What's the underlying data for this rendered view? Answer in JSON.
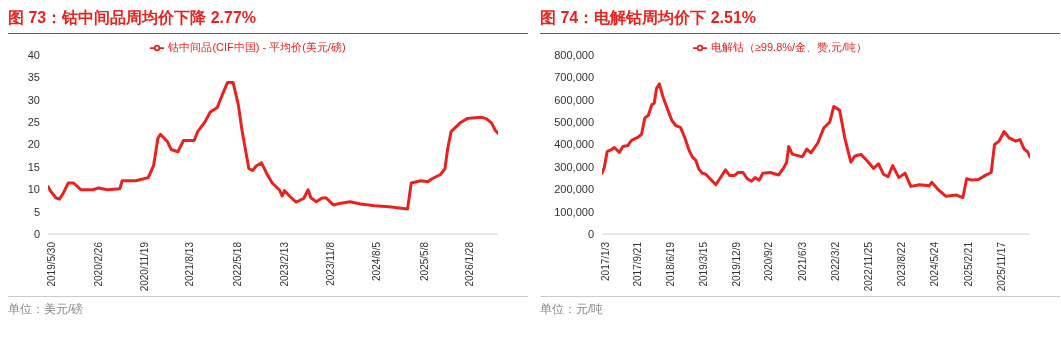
{
  "chart_data": [
    {
      "type": "line",
      "title": "图 73：钴中间品周均价下降 2.77%",
      "annotations": [
        "单位：美元/磅"
      ],
      "legend": "top",
      "x": [
        "2019-05-30",
        "2019-06-14",
        "2019-07-15",
        "2019-08-04",
        "2019-08-24",
        "2019-09-25",
        "2019-10-26",
        "2019-12-07",
        "2020-02-17",
        "2020-03-19",
        "2020-05-10",
        "2020-07-21",
        "2020-08-04",
        "2020-10-23",
        "2021-01-03",
        "2021-02-03",
        "2021-02-18",
        "2021-02-28",
        "2021-03-15",
        "2021-04-24",
        "2021-05-16",
        "2021-06-25",
        "2021-07-27",
        "2021-09-27",
        "2021-10-18",
        "2021-11-28",
        "2021-12-29",
        "2022-02-09",
        "2022-03-11",
        "2022-04-10",
        "2022-05-12",
        "2022-06-11",
        "2022-07-03",
        "2022-07-23",
        "2022-08-12",
        "2022-09-03",
        "2022-09-23",
        "2022-10-25",
        "2022-11-24",
        "2022-12-26",
        "2023-02-05",
        "2023-02-22",
        "2023-03-07",
        "2023-04-06",
        "2023-05-14",
        "2023-06-28",
        "2023-07-23",
        "2023-08-08",
        "2023-09-09",
        "2023-10-10",
        "2023-11-04",
        "2023-12-17",
        "2024-01-21",
        "2024-03-23",
        "2024-05-24",
        "2024-08-14",
        "2024-11-06",
        "2025-02-21",
        "2025-03-15",
        "2025-05-10",
        "2025-06-19",
        "2025-07-11",
        "2025-09-01",
        "2025-09-27",
        "2025-10-12",
        "2025-11-02",
        "2025-12-23",
        "2026-02-03",
        "2026-04-24",
        "2026-05-26",
        "2026-06-26",
        "2026-07-17",
        "2026-08-02"
      ],
      "series": [
        {
          "name": "钴中间品(CIF中国) - 平均价(美元/磅)",
          "color": "#e8231f",
          "values": [
            10.6,
            9.6,
            8.1,
            7.8,
            8.9,
            11.4,
            11.4,
            9.9,
            9.9,
            10.3,
            9.9,
            10.1,
            11.9,
            11.9,
            12.6,
            15.3,
            18.9,
            21.4,
            22.3,
            20.7,
            18.9,
            18.4,
            20.9,
            20.9,
            22.9,
            25,
            27.2,
            28.3,
            31.2,
            33.9,
            33.9,
            29,
            23.2,
            18.9,
            14.6,
            14.2,
            15.2,
            15.9,
            13.5,
            11.4,
            9.9,
            8.5,
            9.7,
            8.5,
            7.1,
            8.0,
            9.9,
            8.1,
            7.2,
            8.0,
            8.1,
            6.5,
            6.8,
            7.2,
            6.7,
            6.3,
            6.1,
            5.6,
            11.4,
            11.9,
            11.7,
            12.3,
            13.3,
            14.6,
            18.9,
            22.9,
            24.8,
            25.8,
            26.1,
            25.8,
            24.8,
            23.2,
            22.5
          ]
        }
      ],
      "xlim": [
        "2019-05-30",
        "2026-08-02"
      ],
      "xticks": [
        {
          "value": "2019-05-30",
          "label": "2019/5/30"
        },
        {
          "value": "2020-02-26",
          "label": "2020/2/26"
        },
        {
          "value": "2020-11-19",
          "label": "2020/11/19"
        },
        {
          "value": "2021-08-13",
          "label": "2021/8/13"
        },
        {
          "value": "2022-05-18",
          "label": "2022/5/18"
        },
        {
          "value": "2023-02-13",
          "label": "2023/2/13"
        },
        {
          "value": "2023-11-08",
          "label": "2023/11/8"
        },
        {
          "value": "2024-08-05",
          "label": "2024/8/5"
        },
        {
          "value": "2025-05-08",
          "label": "2025/5/8"
        },
        {
          "value": "2026-01-28",
          "label": "2026/1/28"
        }
      ],
      "ylim": [
        0,
        40
      ],
      "yticks": [
        0,
        5,
        10,
        15,
        20,
        25,
        30,
        35,
        40
      ]
    },
    {
      "type": "line",
      "title": "图 74：电解钴周均价下 2.51%",
      "annotations": [
        "单位：元/吨"
      ],
      "legend": "top",
      "x": [
        "2017-01-03",
        "2017-01-22",
        "2017-02-14",
        "2017-03-17",
        "2017-04-14",
        "2017-05-25",
        "2017-06-23",
        "2017-08-04",
        "2017-08-31",
        "2017-10-26",
        "2017-11-23",
        "2017-12-20",
        "2018-01-18",
        "2018-02-15",
        "2018-03-07",
        "2018-03-26",
        "2018-04-18",
        "2018-05-16",
        "2018-06-27",
        "2018-07-29",
        "2018-09-01",
        "2018-10-08",
        "2018-11-13",
        "2018-12-16",
        "2019-01-13",
        "2019-02-11",
        "2019-03-08",
        "2019-04-05",
        "2019-05-03",
        "2019-06-14",
        "2019-07-25",
        "2019-08-22",
        "2019-10-12",
        "2019-11-14",
        "2019-12-26",
        "2020-01-23",
        "2020-03-04",
        "2020-04-07",
        "2020-05-12",
        "2020-06-10",
        "2020-07-15",
        "2020-08-13",
        "2020-10-13",
        "2020-12-21",
        "2021-02-02",
        "2021-02-24",
        "2021-03-13",
        "2021-04-11",
        "2021-07-03",
        "2021-08-08",
        "2021-09-11",
        "2021-11-06",
        "2021-12-25",
        "2022-02-12",
        "2022-03-17",
        "2022-05-04",
        "2022-06-15",
        "2022-08-04",
        "2022-09-07",
        "2022-10-26",
        "2022-12-13",
        "2023-02-07",
        "2023-03-18",
        "2023-04-29",
        "2023-06-05",
        "2023-07-13",
        "2023-09-01",
        "2023-10-22",
        "2023-12-08",
        "2024-02-17",
        "2024-05-09",
        "2024-05-28",
        "2024-07-17",
        "2024-09-20",
        "2024-12-17",
        "2025-02-07",
        "2025-03-10",
        "2025-04-21",
        "2025-06-15",
        "2025-08-10",
        "2025-09-27",
        "2025-10-24",
        "2025-11-30",
        "2026-01-11",
        "2026-02-21",
        "2026-04-16",
        "2026-05-21",
        "2026-06-24",
        "2026-07-21",
        "2026-08-11"
      ],
      "series": [
        {
          "name": "电解钴（≥99.8%/金、赞,元/吨）",
          "color": "#e8231f",
          "values": [
            272000,
            298000,
            368000,
            376000,
            387000,
            365000,
            391000,
            396000,
            418000,
            433000,
            446000,
            519000,
            531000,
            578000,
            585000,
            651000,
            671000,
            616000,
            554000,
            508000,
            484000,
            477000,
            430000,
            376000,
            345000,
            329000,
            290000,
            272000,
            267000,
            244000,
            220000,
            244000,
            287000,
            262000,
            262000,
            275000,
            275000,
            247000,
            236000,
            252000,
            241000,
            272000,
            275000,
            264000,
            298000,
            321000,
            391000,
            357000,
            345000,
            380000,
            363000,
            407000,
            474000,
            500000,
            570000,
            554000,
            430000,
            321000,
            349000,
            356000,
            329000,
            293000,
            314000,
            267000,
            256000,
            306000,
            252000,
            272000,
            213000,
            220000,
            216000,
            231000,
            200000,
            169000,
            174000,
            163000,
            247000,
            241000,
            244000,
            262000,
            275000,
            399000,
            415000,
            458000,
            430000,
            415000,
            422000,
            380000,
            368000,
            345000
          ]
        }
      ],
      "xlim": [
        "2017-01-03",
        "2026-08-11"
      ],
      "xticks": [
        {
          "value": "2017-01-03",
          "label": "2017/1/3"
        },
        {
          "value": "2017-09-21",
          "label": "2017/9/21"
        },
        {
          "value": "2018-06-19",
          "label": "2018/6/19"
        },
        {
          "value": "2019-03-15",
          "label": "2019/3/15"
        },
        {
          "value": "2019-12-09",
          "label": "2019/12/9"
        },
        {
          "value": "2020-09-02",
          "label": "2020/9/2"
        },
        {
          "value": "2021-06-03",
          "label": "2021/6/3"
        },
        {
          "value": "2022-03-02",
          "label": "2022/3/2"
        },
        {
          "value": "2022-11-25",
          "label": "2022/11/25"
        },
        {
          "value": "2023-08-22",
          "label": "2023/8/22"
        },
        {
          "value": "2024-05-24",
          "label": "2024/5/24"
        },
        {
          "value": "2025-02-21",
          "label": "2025/2/21"
        },
        {
          "value": "2025-11-17",
          "label": "2025/11/17"
        }
      ],
      "ylim": [
        0,
        800000
      ],
      "yticks": [
        0,
        {
          "value": 100000,
          "label": "100,000"
        },
        {
          "value": 200000,
          "label": "200,000"
        },
        {
          "value": 300000,
          "label": "300,000"
        },
        {
          "value": 400000,
          "label": "400,000"
        },
        {
          "value": 500000,
          "label": "500,000"
        },
        {
          "value": 600000,
          "label": "600,000"
        },
        {
          "value": 700000,
          "label": "700,000"
        },
        {
          "value": 800000,
          "label": "800,000"
        }
      ]
    }
  ]
}
